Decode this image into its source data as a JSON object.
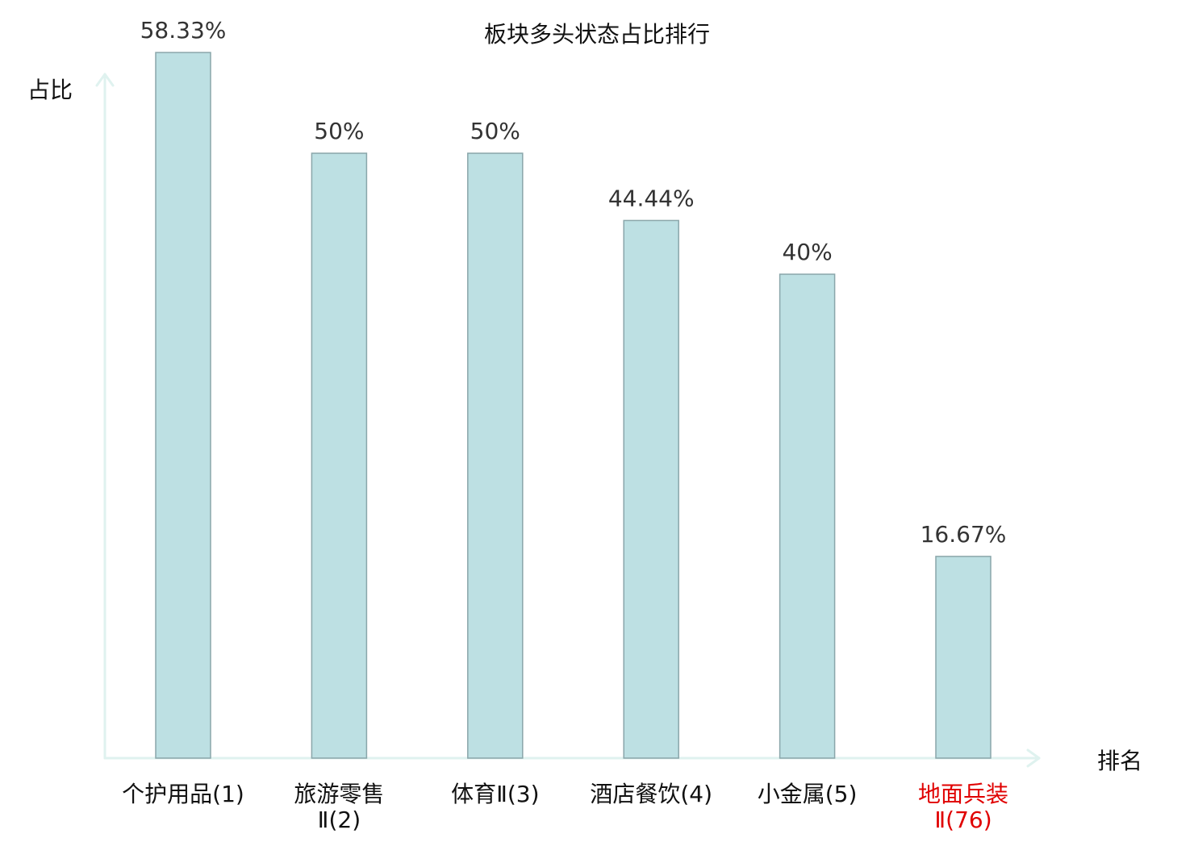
{
  "chart_data": {
    "type": "bar",
    "title": "板块多头状态占比排行",
    "ylabel": "占比",
    "xlabel": "排名",
    "ylim": [
      0,
      60
    ],
    "grid": false,
    "categories": [
      {
        "lines": [
          "个护用品(1)"
        ],
        "highlight": false
      },
      {
        "lines": [
          "旅游零售",
          "Ⅱ(2)"
        ],
        "highlight": false
      },
      {
        "lines": [
          "体育Ⅱ(3)"
        ],
        "highlight": false
      },
      {
        "lines": [
          "酒店餐饮(4)"
        ],
        "highlight": false
      },
      {
        "lines": [
          "小金属(5)"
        ],
        "highlight": false
      },
      {
        "lines": [
          "地面兵装",
          "Ⅱ(76)"
        ],
        "highlight": true
      }
    ],
    "values": [
      58.33,
      50,
      50,
      44.44,
      40,
      16.67
    ],
    "value_labels": [
      "58.33%",
      "50%",
      "50%",
      "44.44%",
      "40%",
      "16.67%"
    ],
    "colors": {
      "bar_fill": "#bde0e3",
      "bar_stroke": "#8aa6aa",
      "axis": "#dff2ef",
      "text": "#333333",
      "highlight": "#e00000"
    }
  }
}
